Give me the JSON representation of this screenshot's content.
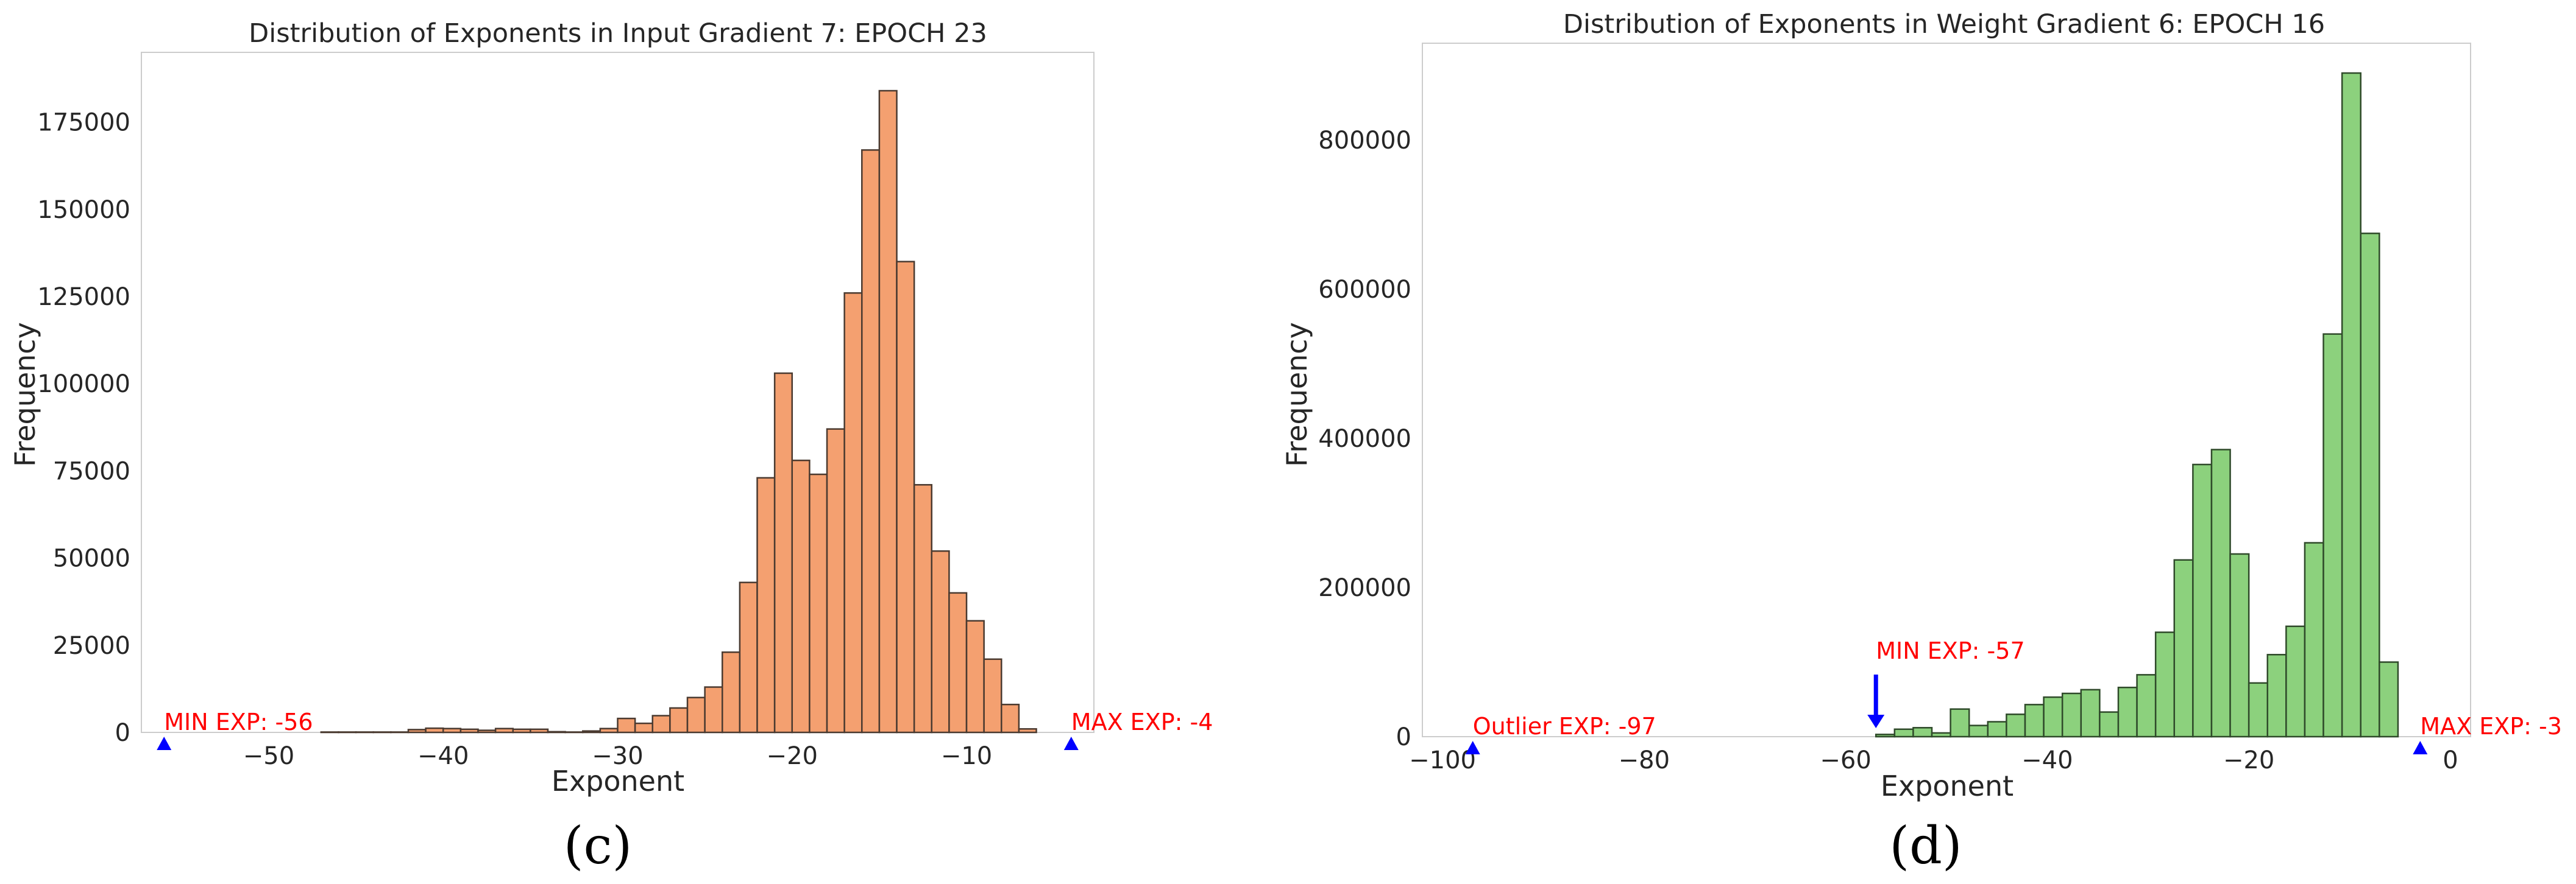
{
  "chart_data": [
    {
      "type": "bar",
      "panel_label": "(c)",
      "title": "Distribution of Exponents in Input Gradient 7: EPOCH 23",
      "xlabel": "Exponent",
      "ylabel": "Frequency",
      "xlim": [
        -57.3,
        -2.7
      ],
      "ylim": [
        0,
        195000
      ],
      "xticks": [
        -50,
        -40,
        -30,
        -20,
        -10
      ],
      "xtick_labels": [
        "−50",
        "−40",
        "−30",
        "−20",
        "−10"
      ],
      "yticks": [
        0,
        25000,
        50000,
        75000,
        100000,
        125000,
        150000,
        175000
      ],
      "ytick_labels": [
        "0",
        "25000",
        "50000",
        "75000",
        "100000",
        "125000",
        "150000",
        "175000"
      ],
      "bar_color": "#f4a070",
      "edge_color": "#4a3a30",
      "bin_start": -56,
      "bin_width": 1,
      "values": [
        0,
        0,
        0,
        0,
        0,
        0,
        0,
        0,
        0,
        100,
        100,
        100,
        100,
        100,
        800,
        1200,
        1100,
        900,
        600,
        1100,
        900,
        900,
        200,
        100,
        400,
        1100,
        4000,
        2600,
        4800,
        7000,
        10000,
        13000,
        23000,
        43000,
        73000,
        103000,
        78000,
        74000,
        87000,
        126000,
        167000,
        184000,
        135000,
        71000,
        52000,
        40000,
        32000,
        21000,
        8000,
        1000,
        0,
        0
      ],
      "annotations": [
        {
          "text": "MIN EXP: -56",
          "x": -56,
          "marker_color": "#0000ff",
          "text_color": "#ff0000"
        },
        {
          "text": "MAX EXP: -4",
          "x": -4,
          "marker_color": "#0000ff",
          "text_color": "#ff0000"
        }
      ]
    },
    {
      "type": "bar",
      "panel_label": "(d)",
      "title": "Distribution of Exponents in Weight Gradient 6: EPOCH 16",
      "xlabel": "Exponent",
      "ylabel": "Frequency",
      "xlim": [
        -102,
        2
      ],
      "ylim": [
        0,
        930000
      ],
      "xticks": [
        -100,
        -80,
        -60,
        -40,
        -20,
        0
      ],
      "xtick_labels": [
        "−100",
        "−80",
        "−60",
        "−40",
        "−20",
        "0"
      ],
      "yticks": [
        0,
        200000,
        400000,
        600000,
        800000
      ],
      "ytick_labels": [
        "0",
        "200000",
        "400000",
        "600000",
        "800000"
      ],
      "bar_color": "#8cd17d",
      "edge_color": "#2f4a2a",
      "bin_start": -57,
      "bin_width": 1.85,
      "values": [
        3000,
        10000,
        12000,
        5000,
        37000,
        15000,
        20000,
        30000,
        43000,
        53000,
        58000,
        63000,
        33000,
        66000,
        83000,
        140000,
        237000,
        365000,
        385000,
        245000,
        72000,
        110000,
        148000,
        260000,
        540000,
        890000,
        675000,
        100000
      ],
      "annotations": [
        {
          "text": "Outlier EXP: -97",
          "x": -97,
          "marker_color": "#0000ff",
          "text_color": "#ff0000"
        },
        {
          "text": "MIN EXP: -57",
          "x": -57,
          "marker_color": "#0000ff",
          "text_color": "#ff0000",
          "arrow": true
        },
        {
          "text": "MAX EXP: -3",
          "x": -3,
          "marker_color": "#0000ff",
          "text_color": "#ff0000"
        }
      ]
    }
  ]
}
